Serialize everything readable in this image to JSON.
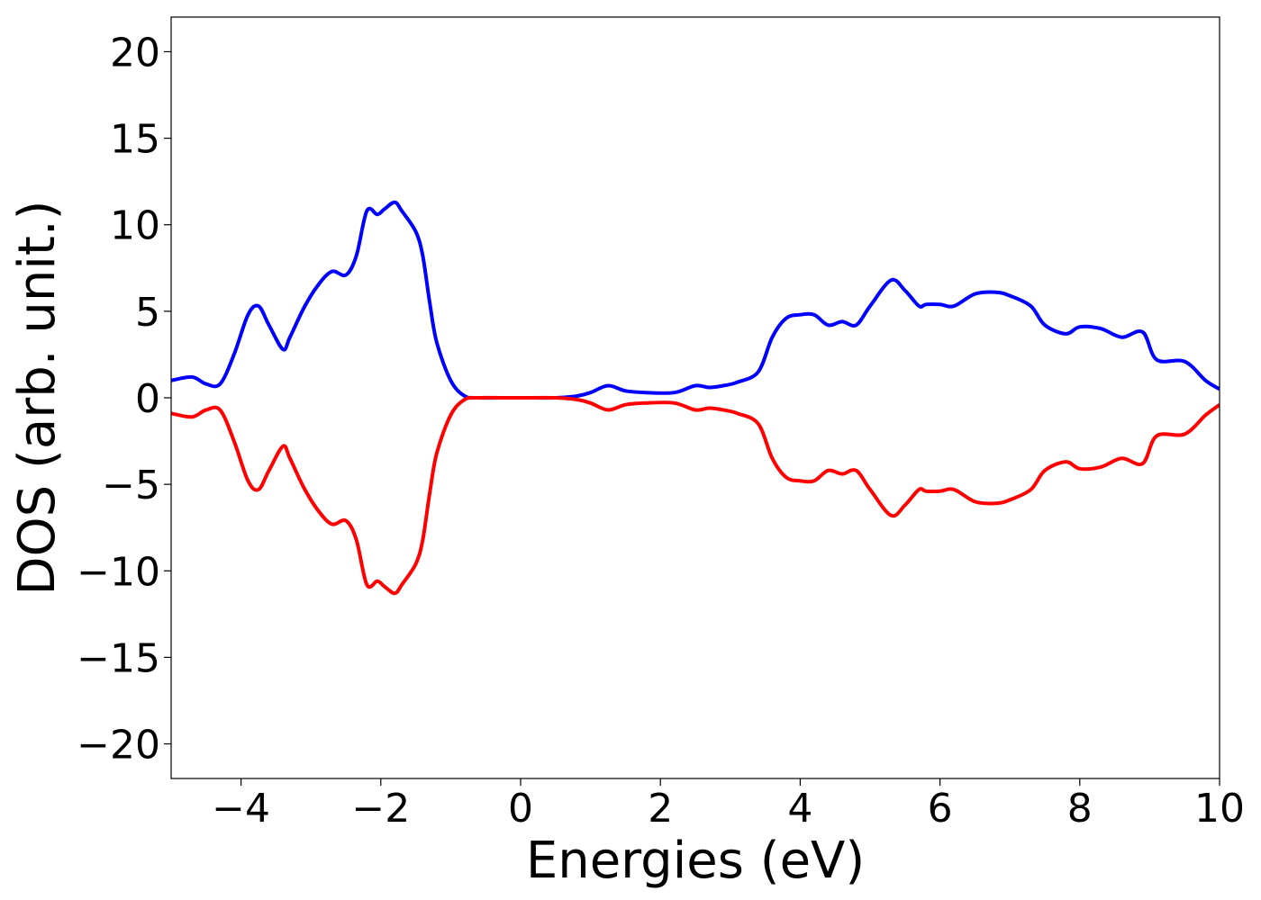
{
  "chart_data": {
    "type": "line",
    "title": "",
    "xlabel": "Energies (eV)",
    "ylabel": "DOS (arb. unit.)",
    "xlim": [
      -5,
      10
    ],
    "ylim": [
      -22,
      22
    ],
    "xticks": [
      -4,
      -2,
      0,
      2,
      4,
      6,
      8,
      10
    ],
    "yticks": [
      20,
      15,
      10,
      5,
      0,
      -5,
      -10,
      -15,
      -20
    ],
    "grid": false,
    "legend": "none",
    "series": [
      {
        "color": "#0000ff",
        "x": [
          -5.0,
          -4.7,
          -4.5,
          -4.3,
          -4.1,
          -3.9,
          -3.75,
          -3.6,
          -3.4,
          -3.3,
          -3.1,
          -2.9,
          -2.7,
          -2.5,
          -2.35,
          -2.2,
          -2.05,
          -1.95,
          -1.8,
          -1.7,
          -1.5,
          -1.4,
          -1.3,
          -1.2,
          -1.0,
          -0.8,
          -0.6,
          -0.3,
          0.0,
          0.5,
          0.8,
          1.0,
          1.25,
          1.5,
          1.8,
          2.2,
          2.5,
          2.7,
          2.9,
          3.1,
          3.4,
          3.6,
          3.8,
          4.0,
          4.2,
          4.4,
          4.6,
          4.8,
          5.0,
          5.3,
          5.5,
          5.7,
          5.8,
          6.0,
          6.2,
          6.5,
          6.8,
          7.0,
          7.3,
          7.5,
          7.8,
          8.0,
          8.3,
          8.6,
          8.9,
          9.1,
          9.5,
          9.8,
          10.0
        ],
        "y": [
          1.0,
          1.2,
          0.8,
          0.8,
          2.5,
          4.8,
          5.3,
          4.2,
          2.8,
          3.5,
          5.2,
          6.5,
          7.3,
          7.1,
          8.2,
          10.8,
          10.6,
          10.9,
          11.3,
          10.8,
          9.6,
          8.2,
          5.5,
          3.2,
          1.0,
          0.1,
          0.0,
          0.0,
          0.0,
          0.0,
          0.1,
          0.3,
          0.7,
          0.4,
          0.3,
          0.3,
          0.7,
          0.6,
          0.7,
          0.9,
          1.5,
          3.5,
          4.6,
          4.8,
          4.8,
          4.2,
          4.4,
          4.2,
          5.3,
          6.8,
          6.2,
          5.3,
          5.4,
          5.4,
          5.3,
          6.0,
          6.1,
          5.9,
          5.3,
          4.2,
          3.7,
          4.1,
          4.0,
          3.5,
          3.8,
          2.2,
          2.1,
          1.0,
          0.5
        ]
      },
      {
        "color": "#ff0000",
        "x": [
          -5.0,
          -4.7,
          -4.5,
          -4.3,
          -4.1,
          -3.9,
          -3.75,
          -3.6,
          -3.4,
          -3.3,
          -3.1,
          -2.9,
          -2.7,
          -2.5,
          -2.35,
          -2.2,
          -2.05,
          -1.95,
          -1.8,
          -1.7,
          -1.5,
          -1.4,
          -1.3,
          -1.2,
          -1.0,
          -0.8,
          -0.6,
          -0.3,
          0.0,
          0.5,
          0.8,
          1.0,
          1.25,
          1.5,
          1.8,
          2.2,
          2.5,
          2.7,
          2.9,
          3.1,
          3.4,
          3.6,
          3.8,
          4.0,
          4.2,
          4.4,
          4.6,
          4.8,
          5.0,
          5.3,
          5.5,
          5.7,
          5.8,
          6.0,
          6.2,
          6.5,
          6.8,
          7.0,
          7.3,
          7.5,
          7.8,
          8.0,
          8.3,
          8.6,
          8.9,
          9.1,
          9.5,
          9.8,
          10.0
        ],
        "y": [
          -0.9,
          -1.1,
          -0.7,
          -0.7,
          -2.5,
          -4.8,
          -5.3,
          -4.2,
          -2.8,
          -3.5,
          -5.2,
          -6.5,
          -7.3,
          -7.1,
          -8.2,
          -10.8,
          -10.6,
          -10.9,
          -11.3,
          -10.8,
          -9.6,
          -8.2,
          -5.5,
          -3.2,
          -1.0,
          -0.1,
          0.0,
          0.0,
          0.0,
          0.0,
          -0.1,
          -0.3,
          -0.7,
          -0.4,
          -0.3,
          -0.3,
          -0.7,
          -0.6,
          -0.7,
          -0.9,
          -1.5,
          -3.5,
          -4.6,
          -4.8,
          -4.8,
          -4.2,
          -4.4,
          -4.2,
          -5.3,
          -6.8,
          -6.2,
          -5.3,
          -5.4,
          -5.4,
          -5.3,
          -6.0,
          -6.1,
          -5.9,
          -5.3,
          -4.2,
          -3.7,
          -4.1,
          -4.0,
          -3.5,
          -3.8,
          -2.2,
          -2.1,
          -1.0,
          -0.4
        ]
      }
    ]
  }
}
